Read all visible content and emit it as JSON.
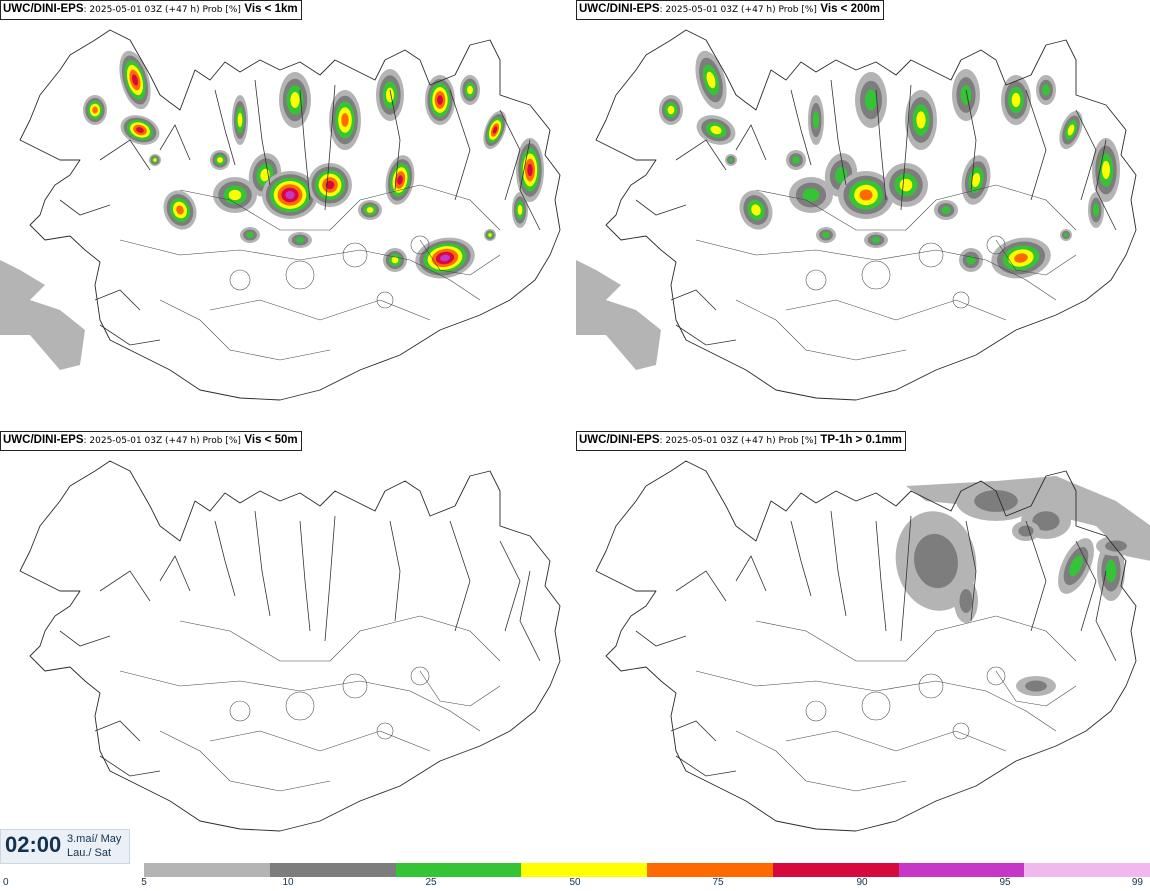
{
  "panels": [
    {
      "model": "UWC/DINI-EPS",
      "info": ": 2025-05-01 03Z (+47 h) Prob [%]",
      "field": "Vis < 1km",
      "intensity": 1.0
    },
    {
      "model": "UWC/DINI-EPS",
      "info": ": 2025-05-01 03Z (+47 h) Prob [%]",
      "field": "Vis < 200m",
      "intensity": 0.6
    },
    {
      "model": "UWC/DINI-EPS",
      "info": ": 2025-05-01 03Z (+47 h) Prob [%]",
      "field": "Vis < 50m",
      "intensity": 0
    },
    {
      "model": "UWC/DINI-EPS",
      "info": ": 2025-05-01 03Z (+47 h) Prob [%]",
      "field": "TP-1h > 0.1mm",
      "intensity": 0.5
    }
  ],
  "valid_time": {
    "time": "02:00",
    "date": "3.maí/ May",
    "day": "Lau./ Sat"
  },
  "legend": {
    "ticks": [
      "0",
      "5",
      "10",
      "25",
      "50",
      "75",
      "90",
      "95",
      "99"
    ],
    "colors": [
      "#b4b4b4",
      "#7d7d7d",
      "#35c435",
      "#ffff00",
      "#ff6a00",
      "#d6083e",
      "#c637c8",
      "#f0b8ec"
    ]
  }
}
